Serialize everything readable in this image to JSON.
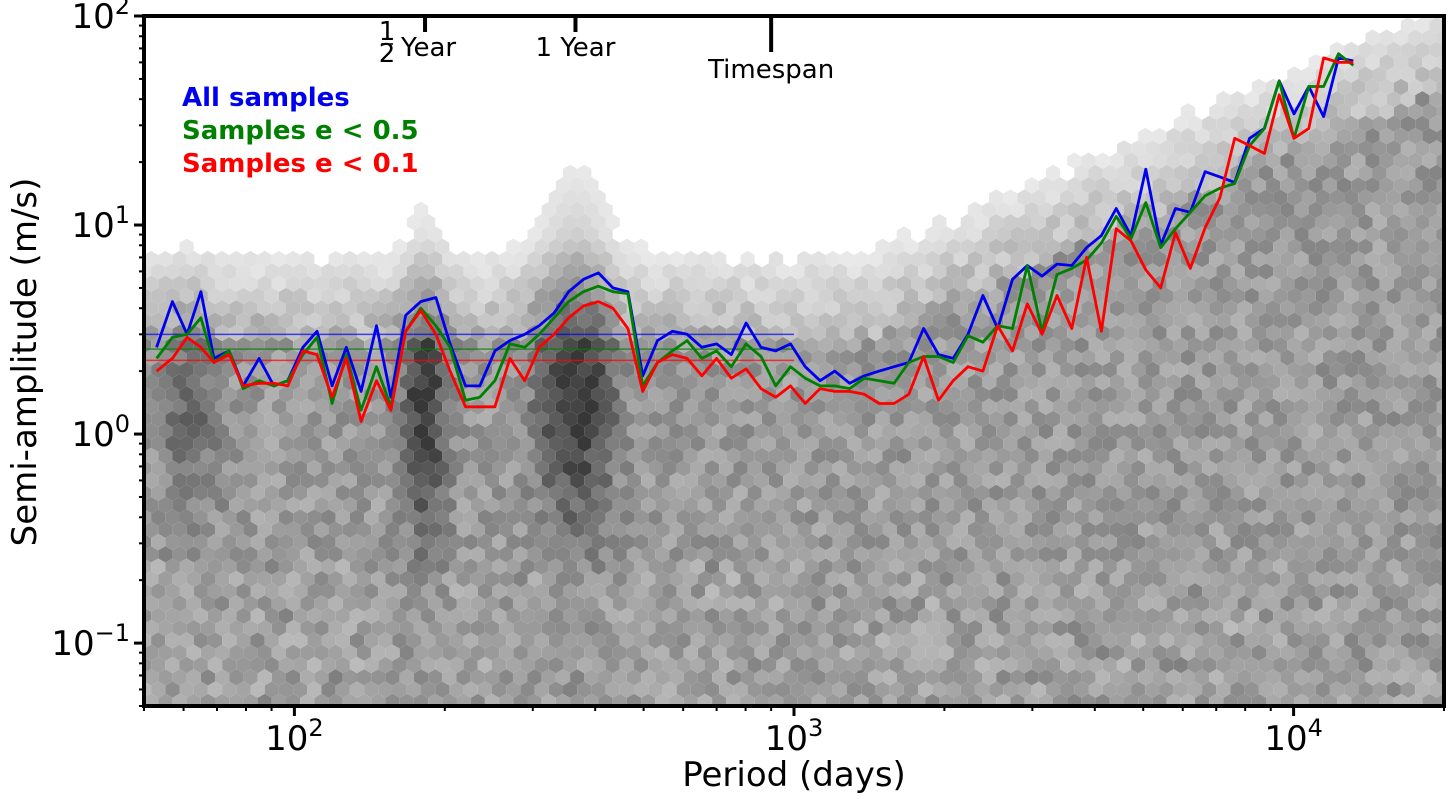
{
  "chart_data": {
    "type": "line",
    "title": "",
    "xlabel": "Period (days)",
    "ylabel": "Semi-amplitude (m/s)",
    "xscale": "log",
    "yscale": "log",
    "xlim": [
      50,
      20000
    ],
    "ylim": [
      0.05,
      100
    ],
    "x_ticks": [
      {
        "value": 100,
        "base": "10",
        "exp": "2"
      },
      {
        "value": 1000,
        "base": "10",
        "exp": "3"
      },
      {
        "value": 10000,
        "base": "10",
        "exp": "4"
      }
    ],
    "y_ticks": [
      {
        "value": 0.1,
        "base": "10",
        "exp": "−1"
      },
      {
        "value": 1,
        "base": "10",
        "exp": "0"
      },
      {
        "value": 10,
        "base": "10",
        "exp": "1"
      },
      {
        "value": 100,
        "base": "10",
        "exp": "2"
      }
    ],
    "annotations": [
      {
        "x": 182.6,
        "label_frac_num": "1",
        "label_frac_den": "2",
        "label": "Year",
        "tick": "short"
      },
      {
        "x": 365.25,
        "label": "1 Year",
        "tick": "short"
      },
      {
        "x": 900,
        "label": "Timespan",
        "tick": "long"
      }
    ],
    "legend_position": "top-left",
    "background": "hexbin density of samples (grayscale)",
    "series": [
      {
        "name": "All samples",
        "color": "#0000ee",
        "median_level": 3.0,
        "median_xmax": 1000,
        "x": [
          53,
          57,
          61,
          65,
          69,
          74,
          79,
          85,
          91,
          97,
          104,
          111,
          119,
          127,
          136,
          146,
          156,
          167,
          179,
          192,
          205,
          220,
          235,
          252,
          270,
          289,
          309,
          331,
          354,
          379,
          406,
          434,
          465,
          498,
          533,
          571,
          611,
          654,
          700,
          749,
          802,
          859,
          919,
          984,
          1053,
          1128,
          1207,
          1292,
          1383,
          1481,
          1586,
          1697,
          1817,
          1946,
          2083,
          2230,
          2388,
          2557,
          2737,
          2931,
          3138,
          3360,
          3597,
          3851,
          4123,
          4415,
          4727,
          5061,
          5419,
          5802,
          6212,
          6651,
          7121,
          7624,
          8163,
          8740,
          9358,
          10019,
          10727,
          11485,
          12297,
          13166
        ],
        "y": [
          2.6,
          4.3,
          3.0,
          4.8,
          2.3,
          2.5,
          1.7,
          2.3,
          1.7,
          1.8,
          2.6,
          3.1,
          1.7,
          2.6,
          1.6,
          3.3,
          1.5,
          3.7,
          4.3,
          4.5,
          2.7,
          1.7,
          1.7,
          2.5,
          2.8,
          3.0,
          3.3,
          3.8,
          4.8,
          5.5,
          5.9,
          5.0,
          4.8,
          1.9,
          2.8,
          3.1,
          3.0,
          2.6,
          2.7,
          2.4,
          3.4,
          2.6,
          2.5,
          2.7,
          2.1,
          1.8,
          2.0,
          1.75,
          1.9,
          2.0,
          2.1,
          2.2,
          3.2,
          2.4,
          2.3,
          3.0,
          4.6,
          3.2,
          5.5,
          6.4,
          5.7,
          6.5,
          6.4,
          7.8,
          8.9,
          12.0,
          8.9,
          18.5,
          8.0,
          12.0,
          11.5,
          18.0,
          17.0,
          16.0,
          26.0,
          29.0,
          49.0,
          34.0,
          46.0,
          33.0,
          63.0,
          61.0
        ]
      },
      {
        "name": "Samples e < 0.5",
        "color": "#008000",
        "median_level": 2.55,
        "median_xmax": 1000,
        "x": [
          53,
          57,
          61,
          65,
          69,
          74,
          79,
          85,
          91,
          97,
          104,
          111,
          119,
          127,
          136,
          146,
          156,
          167,
          179,
          192,
          205,
          220,
          235,
          252,
          270,
          289,
          309,
          331,
          354,
          379,
          406,
          434,
          465,
          498,
          533,
          571,
          611,
          654,
          700,
          749,
          802,
          859,
          919,
          984,
          1053,
          1128,
          1207,
          1292,
          1383,
          1481,
          1586,
          1697,
          1817,
          1946,
          2083,
          2230,
          2388,
          2557,
          2737,
          2931,
          3138,
          3360,
          3597,
          3851,
          4123,
          4415,
          4727,
          5061,
          5419,
          5802,
          6212,
          6651,
          7121,
          7624,
          8163,
          8740,
          9358,
          10019,
          10727,
          11485,
          12297,
          13166
        ],
        "y": [
          2.3,
          2.9,
          3.0,
          3.6,
          2.2,
          2.5,
          1.65,
          1.8,
          1.7,
          1.8,
          2.4,
          2.9,
          1.4,
          2.4,
          1.3,
          2.1,
          1.35,
          3.1,
          4.0,
          3.3,
          2.6,
          1.45,
          1.5,
          1.8,
          2.7,
          2.6,
          3.0,
          3.6,
          4.3,
          4.8,
          5.1,
          4.8,
          4.7,
          1.7,
          2.2,
          2.5,
          2.8,
          2.3,
          2.5,
          2.1,
          2.7,
          2.35,
          1.7,
          2.1,
          1.85,
          1.7,
          1.7,
          1.65,
          1.85,
          1.8,
          1.75,
          2.2,
          2.35,
          2.35,
          2.2,
          2.95,
          2.75,
          3.3,
          3.2,
          6.4,
          3.1,
          5.8,
          6.2,
          6.8,
          8.2,
          11.0,
          8.6,
          12.8,
          7.8,
          9.6,
          11.5,
          13.8,
          15.0,
          15.8,
          24.0,
          29.0,
          49.0,
          26.0,
          46.0,
          46.0,
          66.0,
          58.0
        ]
      },
      {
        "name": "Samples e < 0.1",
        "color": "#ff0000",
        "median_level": 2.25,
        "median_xmax": 1000,
        "x": [
          53,
          57,
          61,
          65,
          69,
          74,
          79,
          85,
          91,
          97,
          104,
          111,
          119,
          127,
          136,
          146,
          156,
          167,
          179,
          192,
          205,
          220,
          235,
          252,
          270,
          289,
          309,
          331,
          354,
          379,
          406,
          434,
          465,
          498,
          533,
          571,
          611,
          654,
          700,
          749,
          802,
          859,
          919,
          984,
          1053,
          1128,
          1207,
          1292,
          1383,
          1481,
          1586,
          1697,
          1817,
          1946,
          2083,
          2230,
          2388,
          2557,
          2737,
          2931,
          3138,
          3360,
          3597,
          3851,
          4123,
          4415,
          4727,
          5061,
          5419,
          5802,
          6212,
          6651,
          7121,
          7624,
          8163,
          8740,
          9358,
          10019,
          10727,
          11485,
          12297,
          13166
        ],
        "y": [
          2.0,
          2.3,
          2.9,
          2.6,
          2.2,
          2.4,
          1.7,
          1.75,
          1.75,
          1.7,
          2.5,
          2.4,
          1.5,
          2.3,
          1.15,
          1.8,
          1.3,
          3.1,
          3.9,
          3.0,
          2.0,
          1.35,
          1.35,
          1.35,
          2.3,
          1.8,
          2.6,
          3.0,
          3.6,
          4.1,
          4.3,
          4.0,
          3.2,
          1.6,
          2.2,
          2.4,
          2.3,
          1.9,
          2.3,
          1.85,
          2.05,
          1.65,
          1.5,
          1.7,
          1.4,
          1.65,
          1.6,
          1.6,
          1.55,
          1.4,
          1.4,
          1.55,
          2.35,
          1.45,
          1.8,
          2.1,
          2.0,
          3.3,
          2.5,
          4.2,
          3.0,
          4.6,
          3.2,
          7.0,
          3.1,
          9.6,
          8.4,
          6.1,
          5.0,
          9.2,
          6.2,
          9.7,
          13.5,
          26.0,
          24.0,
          22.0,
          42.0,
          26.0,
          29.0,
          63.0,
          60.0,
          60.0
        ]
      }
    ]
  }
}
